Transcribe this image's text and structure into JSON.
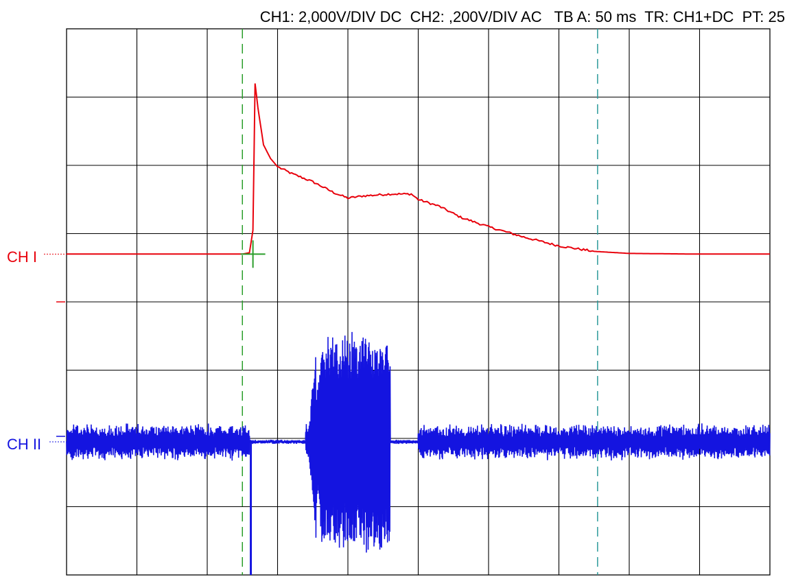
{
  "header": {
    "ch1": "CH1: 2,000V/DIV DC",
    "ch2": "CH2: ,200V/DIV AC",
    "timebase": "TB A: 50 ms",
    "trigger": "TR: CH1+DC",
    "pt": "PT: 25"
  },
  "labels": {
    "ch1": "CH I",
    "ch2": "CH II"
  },
  "colors": {
    "ch1": "#e8000b",
    "ch2": "#1414e0",
    "grid": "#000000",
    "cursor_left": "#2a9d2a",
    "cursor_right": "#2a9a9a"
  },
  "chart_data": {
    "type": "line",
    "title": "",
    "xlabel": "",
    "ylabel": "",
    "x_unit": "div (50 ms/div)",
    "y_unit": "div",
    "xlim": [
      0,
      10
    ],
    "ylim": [
      -4,
      4
    ],
    "grid": true,
    "cursors_x": [
      2.5,
      7.55
    ],
    "series": [
      {
        "name": "CH I",
        "color": "#e8000b",
        "ground_level": 0.7,
        "points": [
          [
            0.0,
            0.7
          ],
          [
            2.5,
            0.7
          ],
          [
            2.6,
            0.72
          ],
          [
            2.65,
            1.05
          ],
          [
            2.68,
            3.2
          ],
          [
            2.72,
            2.85
          ],
          [
            2.8,
            2.3
          ],
          [
            2.9,
            2.1
          ],
          [
            3.0,
            1.98
          ],
          [
            3.2,
            1.88
          ],
          [
            3.5,
            1.76
          ],
          [
            3.8,
            1.6
          ],
          [
            4.0,
            1.52
          ],
          [
            4.2,
            1.55
          ],
          [
            4.6,
            1.58
          ],
          [
            4.9,
            1.58
          ],
          [
            5.0,
            1.5
          ],
          [
            5.3,
            1.4
          ],
          [
            5.6,
            1.24
          ],
          [
            6.0,
            1.1
          ],
          [
            6.5,
            0.95
          ],
          [
            7.0,
            0.82
          ],
          [
            7.5,
            0.74
          ],
          [
            8.0,
            0.71
          ],
          [
            9.0,
            0.7
          ],
          [
            10.0,
            0.7
          ]
        ]
      },
      {
        "name": "CH II",
        "color": "#1414e0",
        "baseline": -2.05,
        "noise_amplitude": 0.28,
        "quiet_segments": [
          [
            2.6,
            3.4
          ],
          [
            4.6,
            5.0
          ]
        ],
        "dropout": {
          "x": 2.62,
          "to": -4.0
        },
        "burst": {
          "start": 3.55,
          "end": 4.6,
          "peak_amplitude": 1.65
        }
      }
    ]
  }
}
